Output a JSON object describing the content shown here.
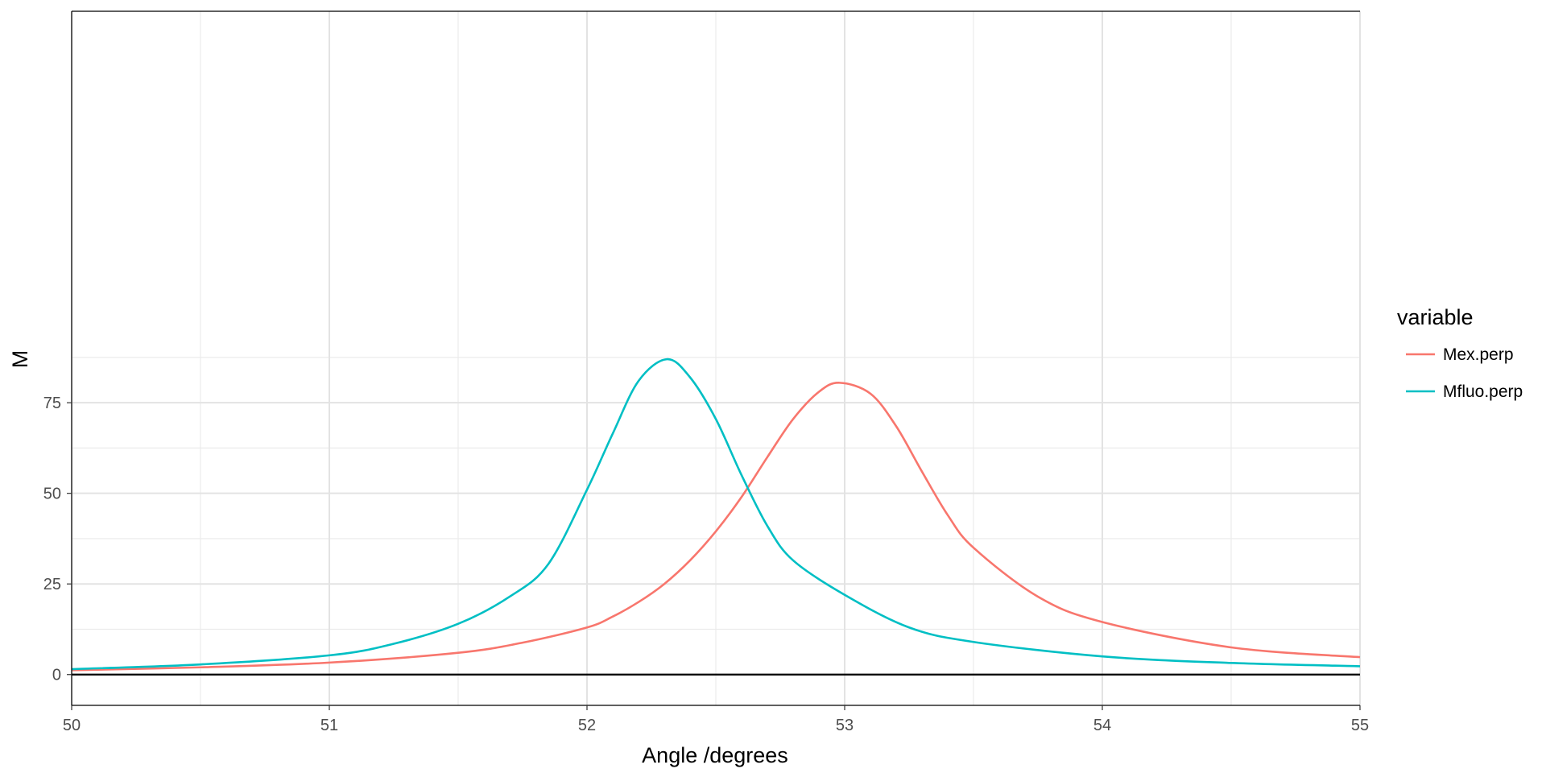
{
  "chart_data": {
    "type": "line",
    "title": "",
    "xlabel": "Angle /degrees",
    "ylabel": "M",
    "xlim": [
      50,
      55
    ],
    "ylim": [
      -8.5,
      183
    ],
    "x_ticks": [
      "50",
      "51",
      "52",
      "53",
      "54",
      "55"
    ],
    "y_ticks": [
      "0",
      "25",
      "50",
      "75"
    ],
    "x_tick_values": [
      50,
      51,
      52,
      53,
      54,
      55
    ],
    "y_tick_values": [
      0,
      25,
      50,
      75
    ],
    "x_minor_grid": [
      50.5,
      51.5,
      52.5,
      53.5,
      54.5
    ],
    "y_minor_grid": [
      12.5,
      37.5,
      62.5,
      87.5
    ],
    "grid": true,
    "zero_line": 0,
    "legend": {
      "title": "variable",
      "position": "right"
    },
    "series": [
      {
        "name": "Mex.perp",
        "color": "#F8766D",
        "x": [
          50.0,
          50.5,
          51.0,
          51.5,
          51.75,
          52.0,
          52.1,
          52.2,
          52.3,
          52.4,
          52.5,
          52.6,
          52.7,
          52.8,
          52.9,
          52.98,
          53.1,
          53.2,
          53.3,
          53.4,
          53.5,
          53.75,
          54.0,
          54.5,
          55.0
        ],
        "y": [
          1.2,
          2.0,
          3.3,
          6.0,
          8.8,
          13.0,
          16.0,
          20.0,
          25.0,
          31.5,
          39.5,
          49.0,
          60.0,
          70.5,
          78.0,
          80.5,
          77.5,
          68.5,
          56.0,
          44.0,
          35.0,
          21.5,
          14.5,
          7.5,
          4.8
        ]
      },
      {
        "name": "Mfluo.perp",
        "color": "#00BFC4",
        "x": [
          50.0,
          50.5,
          51.0,
          51.25,
          51.5,
          51.7,
          51.85,
          52.0,
          52.1,
          52.2,
          52.31,
          52.4,
          52.5,
          52.6,
          52.7,
          52.8,
          53.0,
          53.25,
          53.5,
          54.0,
          54.5,
          55.0
        ],
        "y": [
          1.5,
          2.8,
          5.3,
          8.5,
          14.0,
          21.5,
          30.5,
          51.0,
          66.5,
          81.0,
          87.0,
          82.0,
          70.5,
          55.0,
          41.0,
          31.5,
          22.0,
          13.0,
          9.0,
          5.0,
          3.2,
          2.3
        ]
      }
    ]
  }
}
